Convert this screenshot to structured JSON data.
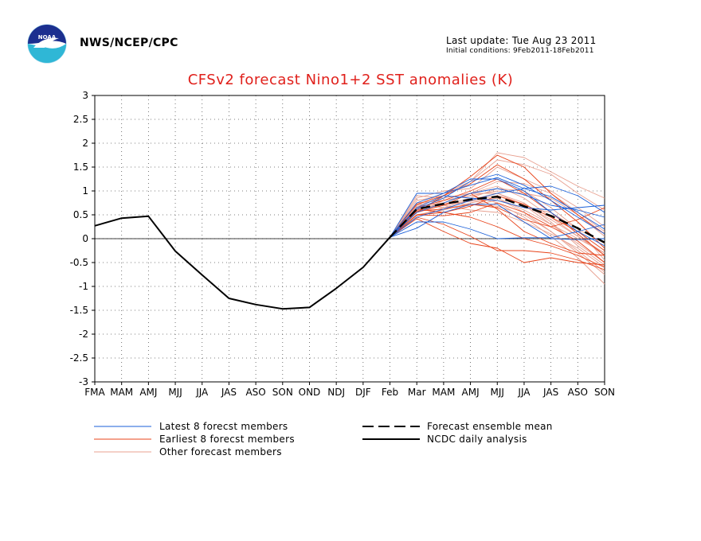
{
  "header": {
    "agency": "NWS/NCEP/CPC",
    "last_update": "Last update: Tue Aug 23 2011",
    "initial_conditions": "Initial conditions: 9Feb2011-18Feb2011",
    "logo_text": "NOAA"
  },
  "colors": {
    "title": "#e0201b",
    "latest": "#1a5fd8",
    "earliest": "#e8431a",
    "other": "#e8a090",
    "mean": "#000000",
    "analysis": "#000000"
  },
  "chart_data": {
    "type": "line",
    "title": "CFSv2 forecast Nino1+2 SST anomalies (K)",
    "xlabel": "",
    "ylabel": "",
    "categories": [
      "FMA",
      "MAM",
      "AMJ",
      "MJJ",
      "JJA",
      "JAS",
      "ASO",
      "SON",
      "OND",
      "NDJ",
      "DJF",
      "Feb",
      "Mar",
      "MAM",
      "AMJ",
      "MJJ",
      "JJA",
      "JAS",
      "ASO",
      "SON"
    ],
    "ylim": [
      -3,
      3
    ],
    "yticks": [
      "3",
      "2.5",
      "2",
      "1.5",
      "1",
      "0.5",
      "0",
      "-0.5",
      "-1",
      "-1.5",
      "-2",
      "-2.5",
      "-3"
    ],
    "grid": true,
    "legend": [
      {
        "label": "Latest 8 forecst members",
        "style": "thin-blue"
      },
      {
        "label": "Earliest 8 forecst members",
        "style": "thin-red"
      },
      {
        "label": "Other forecast members",
        "style": "thin-pink"
      },
      {
        "label": "Forecast ensemble mean",
        "style": "dashed-black"
      },
      {
        "label": "NCDC daily analysis",
        "style": "solid-black"
      }
    ],
    "analysis": {
      "name": "NCDC daily analysis",
      "x_index": [
        0,
        1,
        2,
        3,
        4,
        5,
        6,
        7,
        8,
        9,
        10,
        11
      ],
      "values": [
        0.27,
        0.43,
        0.47,
        -0.26,
        -0.76,
        -1.25,
        -1.38,
        -1.47,
        -1.44,
        -1.04,
        -0.6,
        0.03
      ]
    },
    "ensemble_mean": {
      "name": "Forecast ensemble mean",
      "x_index": [
        11,
        12,
        13,
        14,
        15,
        16,
        17,
        18,
        19
      ],
      "values": [
        0.03,
        0.62,
        0.73,
        0.82,
        0.88,
        0.68,
        0.48,
        0.22,
        -0.08
      ]
    },
    "latest_members": [
      [
        0.03,
        0.75,
        0.95,
        1.12,
        1.28,
        1.05,
        0.88,
        0.55,
        0.2
      ],
      [
        0.03,
        0.62,
        0.85,
        1.2,
        1.35,
        1.12,
        0.8,
        0.45,
        0.1
      ],
      [
        0.03,
        0.55,
        0.75,
        0.95,
        1.05,
        0.92,
        0.7,
        0.6,
        0.45
      ],
      [
        0.03,
        0.45,
        0.62,
        0.8,
        0.95,
        1.05,
        1.1,
        0.9,
        0.55
      ],
      [
        0.03,
        0.35,
        0.35,
        0.2,
        0.0,
        0.02,
        0.02,
        0.15,
        0.3
      ],
      [
        0.03,
        0.22,
        0.55,
        0.72,
        0.72,
        0.35,
        0.0,
        -0.02,
        0.0
      ],
      [
        0.03,
        0.95,
        0.95,
        1.25,
        1.25,
        1.0,
        0.55,
        0.15,
        -0.15
      ],
      [
        0.03,
        0.65,
        0.9,
        0.85,
        0.8,
        0.65,
        0.6,
        0.65,
        0.7
      ]
    ],
    "earliest_members": [
      [
        0.03,
        0.55,
        0.9,
        1.3,
        1.75,
        1.5,
        0.95,
        0.5,
        0.1
      ],
      [
        0.03,
        0.72,
        0.9,
        1.15,
        1.55,
        1.25,
        0.8,
        0.35,
        -0.2
      ],
      [
        0.03,
        0.62,
        0.55,
        0.68,
        0.9,
        0.72,
        0.45,
        0.15,
        -0.25
      ],
      [
        0.03,
        0.5,
        0.55,
        0.45,
        0.25,
        0.0,
        -0.15,
        -0.35,
        -0.6
      ],
      [
        0.03,
        0.45,
        0.3,
        0.05,
        -0.25,
        -0.25,
        -0.3,
        -0.45,
        -0.65
      ],
      [
        0.03,
        0.65,
        0.8,
        1.0,
        1.25,
        0.95,
        0.55,
        0.1,
        -0.35
      ],
      [
        0.03,
        0.5,
        0.48,
        0.55,
        0.75,
        0.55,
        0.25,
        -0.05,
        -0.5
      ],
      [
        0.03,
        0.42,
        0.15,
        -0.1,
        -0.2,
        -0.5,
        -0.4,
        -0.5,
        -0.55
      ],
      [
        0.03,
        0.58,
        0.62,
        0.72,
        0.65,
        0.4,
        0.25,
        0.4,
        0.65
      ],
      [
        0.03,
        0.55,
        0.7,
        0.95,
        0.62,
        0.15,
        -0.1,
        -0.3,
        -0.35
      ]
    ],
    "other_members": [
      [
        0.03,
        0.8,
        0.9,
        1.2,
        1.8,
        1.7,
        1.4,
        1.1,
        0.85
      ],
      [
        0.03,
        0.7,
        0.95,
        1.2,
        1.65,
        1.55,
        1.35,
        0.95,
        0.6
      ],
      [
        0.03,
        0.85,
        1.0,
        1.05,
        1.5,
        1.25,
        1.0,
        0.65,
        0.25
      ],
      [
        0.03,
        0.6,
        0.75,
        0.95,
        1.1,
        0.85,
        0.45,
        0.05,
        -0.35
      ],
      [
        0.03,
        0.9,
        0.85,
        0.95,
        0.95,
        0.75,
        0.35,
        -0.15,
        -0.55
      ],
      [
        0.03,
        0.5,
        0.6,
        0.75,
        0.85,
        0.55,
        0.15,
        -0.3,
        -0.75
      ],
      [
        0.03,
        0.75,
        0.8,
        0.9,
        0.75,
        0.45,
        0.05,
        -0.4,
        -0.95
      ],
      [
        0.03,
        0.65,
        0.7,
        0.8,
        0.9,
        0.7,
        0.3,
        0.0,
        -0.3
      ],
      [
        0.03,
        0.72,
        0.65,
        0.7,
        0.8,
        0.65,
        0.55,
        0.2,
        -0.1
      ],
      [
        0.03,
        0.58,
        0.7,
        0.85,
        1.05,
        1.0,
        0.65,
        0.2,
        -0.45
      ],
      [
        0.03,
        0.62,
        0.7,
        0.6,
        0.55,
        0.35,
        0.1,
        -0.2,
        -0.6
      ],
      [
        0.03,
        0.55,
        0.8,
        0.9,
        1.0,
        0.95,
        0.85,
        0.5,
        0.05
      ],
      [
        0.03,
        0.68,
        0.75,
        0.72,
        0.68,
        0.5,
        0.15,
        -0.25,
        -0.7
      ],
      [
        0.03,
        0.48,
        0.65,
        0.82,
        0.95,
        0.7,
        0.4,
        0.05,
        -0.3
      ],
      [
        0.03,
        0.7,
        0.85,
        0.95,
        1.2,
        1.15,
        0.95,
        0.55,
        0.15
      ],
      [
        0.03,
        0.6,
        0.72,
        0.78,
        0.85,
        0.6,
        0.3,
        -0.1,
        -0.5
      ]
    ]
  }
}
